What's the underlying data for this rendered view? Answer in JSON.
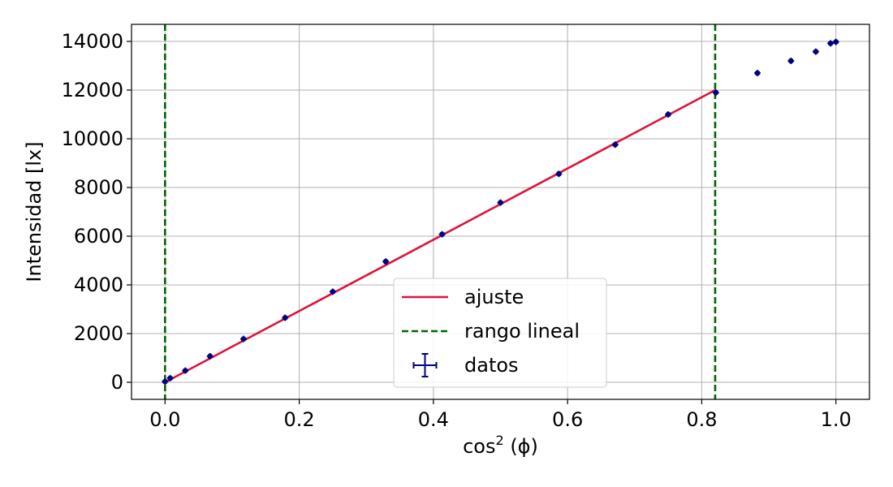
{
  "chart_data": {
    "type": "scatter",
    "title": "",
    "xlabel": "cos",
    "xlabel_sup": "2",
    "xlabel_rest": " (ϕ)",
    "ylabel": "Intensidad [lx]",
    "xlim": [
      -0.05,
      1.05
    ],
    "ylim": [
      -700,
      14700
    ],
    "xticks": [
      0.0,
      0.2,
      0.4,
      0.6,
      0.8,
      1.0
    ],
    "xtick_labels": [
      "0.0",
      "0.2",
      "0.4",
      "0.6",
      "0.8",
      "1.0"
    ],
    "yticks": [
      0,
      2000,
      4000,
      6000,
      8000,
      10000,
      12000,
      14000
    ],
    "ytick_labels": [
      "0",
      "2000",
      "4000",
      "6000",
      "8000",
      "10000",
      "12000",
      "14000"
    ],
    "grid": true,
    "legend_position": "bottom-center",
    "series": [
      {
        "name": "ajuste",
        "kind": "line",
        "color": "#dc143c",
        "x": [
          0.0,
          0.82
        ],
        "y": [
          0,
          12000
        ]
      },
      {
        "name": "rango lineal",
        "kind": "vline",
        "color": "#006400",
        "x": [
          0.0,
          0.82
        ]
      },
      {
        "name": "datos",
        "kind": "errorbar",
        "color": "#000080",
        "x": [
          0.0,
          0.0076,
          0.0302,
          0.067,
          0.117,
          0.179,
          0.25,
          0.329,
          0.413,
          0.5,
          0.587,
          0.671,
          0.75,
          0.821,
          0.883,
          0.933,
          0.97,
          0.992,
          1.0
        ],
        "y": [
          30,
          170,
          480,
          1070,
          1780,
          2650,
          3720,
          4960,
          6080,
          7380,
          8560,
          9760,
          11000,
          11900,
          12700,
          13200,
          13580,
          13920,
          13980
        ]
      }
    ]
  }
}
